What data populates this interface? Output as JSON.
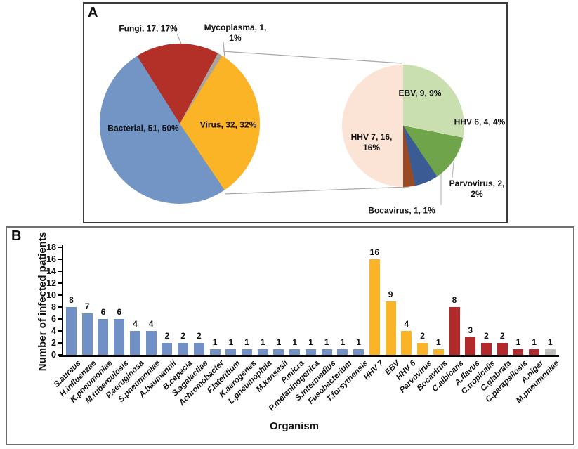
{
  "panels": {
    "a_label": "A",
    "b_label": "B"
  },
  "chart_data": [
    {
      "id": "organism-type-pie",
      "type": "pie",
      "title": "",
      "start_angle": 28.4,
      "legend": "none",
      "segments": [
        {
          "label": "Mycoplasma",
          "value": 1,
          "pct": "1%",
          "color": "#aba39e",
          "display": "Mycoplasma, 1, 1%"
        },
        {
          "label": "Virus",
          "value": 32,
          "pct": "32%",
          "color": "#fbb426",
          "display": "Virus, 32, 32%"
        },
        {
          "label": "Bacterial",
          "value": 51,
          "pct": "50%",
          "color": "#7295c6",
          "display": "Bacterial, 51, 50%"
        },
        {
          "label": "Fungi",
          "value": 17,
          "pct": "17%",
          "color": "#b23028",
          "display": "Fungi, 17, 17%"
        }
      ]
    },
    {
      "id": "virus-breakdown-pie",
      "type": "pie",
      "title": "",
      "start_angle": 0,
      "legend": "none",
      "segments": [
        {
          "label": "EBV",
          "value": 9,
          "pct": "9%",
          "color": "#c9dfb0",
          "display": "EBV, 9, 9%"
        },
        {
          "label": "HHV 6",
          "value": 4,
          "pct": "4%",
          "color": "#6fa44a",
          "display": "HHV 6, 4, 4%"
        },
        {
          "label": "Parvovirus",
          "value": 2,
          "pct": "2%",
          "color": "#3a5b93",
          "display": "Parvovirus, 2, 2%"
        },
        {
          "label": "Bocavirus",
          "value": 1,
          "pct": "1%",
          "color": "#9a4a22",
          "display": "Bocavirus, 1, 1%"
        },
        {
          "label": "HHV 7",
          "value": 16,
          "pct": "16%",
          "color": "#fbe3d5",
          "display": "HHV 7, 16, 16%"
        }
      ]
    },
    {
      "id": "infected-patients-bar",
      "type": "bar",
      "title": "",
      "xlabel": "Organism",
      "ylabel": "Number of infected patients",
      "ylim": [
        0,
        18
      ],
      "y_ticks": [
        0,
        2,
        4,
        6,
        8,
        10,
        12,
        14,
        16,
        18
      ],
      "grid": "off",
      "group_colors": {
        "bacterial": "#7191c6",
        "virus": "#fbb427",
        "fungi": "#b2292b",
        "mycoplasma": "#c2bfba"
      },
      "bars": [
        {
          "category": "S.aureus",
          "value": 8,
          "group": "bacterial"
        },
        {
          "category": "H.influenzae",
          "value": 7,
          "group": "bacterial"
        },
        {
          "category": "K.pneumoniae",
          "value": 6,
          "group": "bacterial"
        },
        {
          "category": "M.tuberculosis",
          "value": 6,
          "group": "bacterial"
        },
        {
          "category": "P.aeruginosa",
          "value": 4,
          "group": "bacterial"
        },
        {
          "category": "S.pneumoniae",
          "value": 4,
          "group": "bacterial"
        },
        {
          "category": "A.baumannii",
          "value": 2,
          "group": "bacterial"
        },
        {
          "category": "B.cepacia",
          "value": 2,
          "group": "bacterial"
        },
        {
          "category": "S.agalactiae",
          "value": 2,
          "group": "bacterial"
        },
        {
          "category": "Achromobacter",
          "value": 1,
          "group": "bacterial"
        },
        {
          "category": "F.lateritium",
          "value": 1,
          "group": "bacterial"
        },
        {
          "category": "K.aerogenes",
          "value": 1,
          "group": "bacterial"
        },
        {
          "category": "L.pneumophila",
          "value": 1,
          "group": "bacterial"
        },
        {
          "category": "M.kansasii",
          "value": 1,
          "group": "bacterial"
        },
        {
          "category": "P.micra",
          "value": 1,
          "group": "bacterial"
        },
        {
          "category": "P.melaninogenica",
          "value": 1,
          "group": "bacterial"
        },
        {
          "category": "S.intermedius",
          "value": 1,
          "group": "bacterial"
        },
        {
          "category": "Fusobacterium",
          "value": 1,
          "group": "bacterial"
        },
        {
          "category": "T.forsythensis",
          "value": 1,
          "group": "bacterial"
        },
        {
          "category": "HHV 7",
          "value": 16,
          "group": "virus"
        },
        {
          "category": "EBV",
          "value": 9,
          "group": "virus"
        },
        {
          "category": "HHV 6",
          "value": 4,
          "group": "virus"
        },
        {
          "category": "Parvovirus",
          "value": 2,
          "group": "virus"
        },
        {
          "category": "Bocavirus",
          "value": 1,
          "group": "virus"
        },
        {
          "category": "C.albicans",
          "value": 8,
          "group": "fungi"
        },
        {
          "category": "A.flavus",
          "value": 3,
          "group": "fungi"
        },
        {
          "category": "C.tropicalis",
          "value": 2,
          "group": "fungi"
        },
        {
          "category": "C.glabrata",
          "value": 2,
          "group": "fungi"
        },
        {
          "category": "C.parapsilosis",
          "value": 1,
          "group": "fungi"
        },
        {
          "category": "A.niger",
          "value": 1,
          "group": "fungi"
        },
        {
          "category": "M.pneumoniae",
          "value": 1,
          "group": "mycoplasma"
        }
      ]
    }
  ]
}
